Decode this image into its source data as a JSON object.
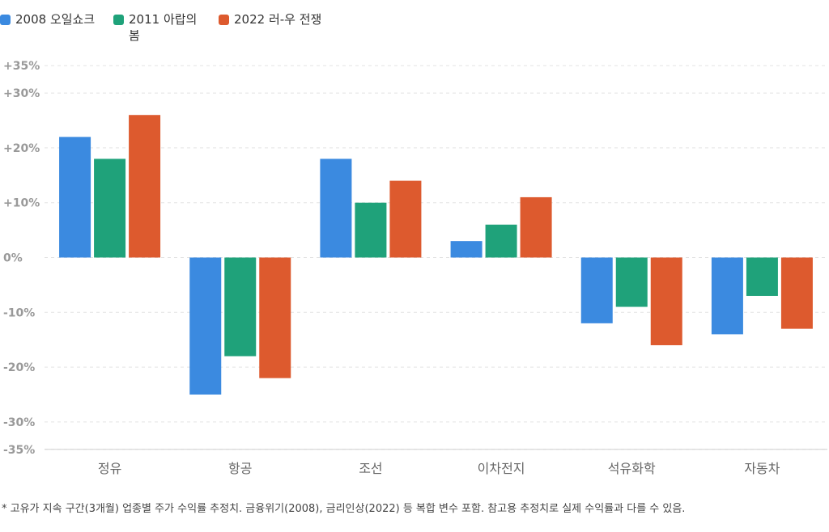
{
  "chart_data": {
    "type": "bar",
    "categories": [
      "정유",
      "항공",
      "조선",
      "이차전지",
      "석유화학",
      "자동차"
    ],
    "series": [
      {
        "name": "2008 오일쇼크",
        "color": "#3b8ae0",
        "values": [
          22,
          -25,
          18,
          3,
          -12,
          -14
        ]
      },
      {
        "name": "2011 아랍의 봄",
        "color": "#1fa27a",
        "values": [
          18,
          -18,
          10,
          6,
          -9,
          -7
        ]
      },
      {
        "name": "2022 러-우 전쟁",
        "color": "#dd5a2e",
        "values": [
          26,
          -22,
          14,
          11,
          -16,
          -13
        ]
      }
    ],
    "ylim": [
      -35,
      35
    ],
    "yticks": [
      {
        "value": 35,
        "label": "+35%"
      },
      {
        "value": 30,
        "label": "+30%"
      },
      {
        "value": 20,
        "label": "+20%"
      },
      {
        "value": 10,
        "label": "+10%"
      },
      {
        "value": 0,
        "label": "0%"
      },
      {
        "value": -10,
        "label": "-10%"
      },
      {
        "value": -20,
        "label": "-20%"
      },
      {
        "value": -30,
        "label": "-30%"
      },
      {
        "value": -35,
        "label": "-35%"
      }
    ],
    "grid": true,
    "legend_position": "top-left"
  },
  "footnote": "* 고유가 지속 구간(3개월) 업종별 주가 수익률 추정치. 금융위기(2008), 금리인상(2022) 등 복합 변수 포함. 참고용 추정치로 실제 수익률과 다를 수 있음."
}
